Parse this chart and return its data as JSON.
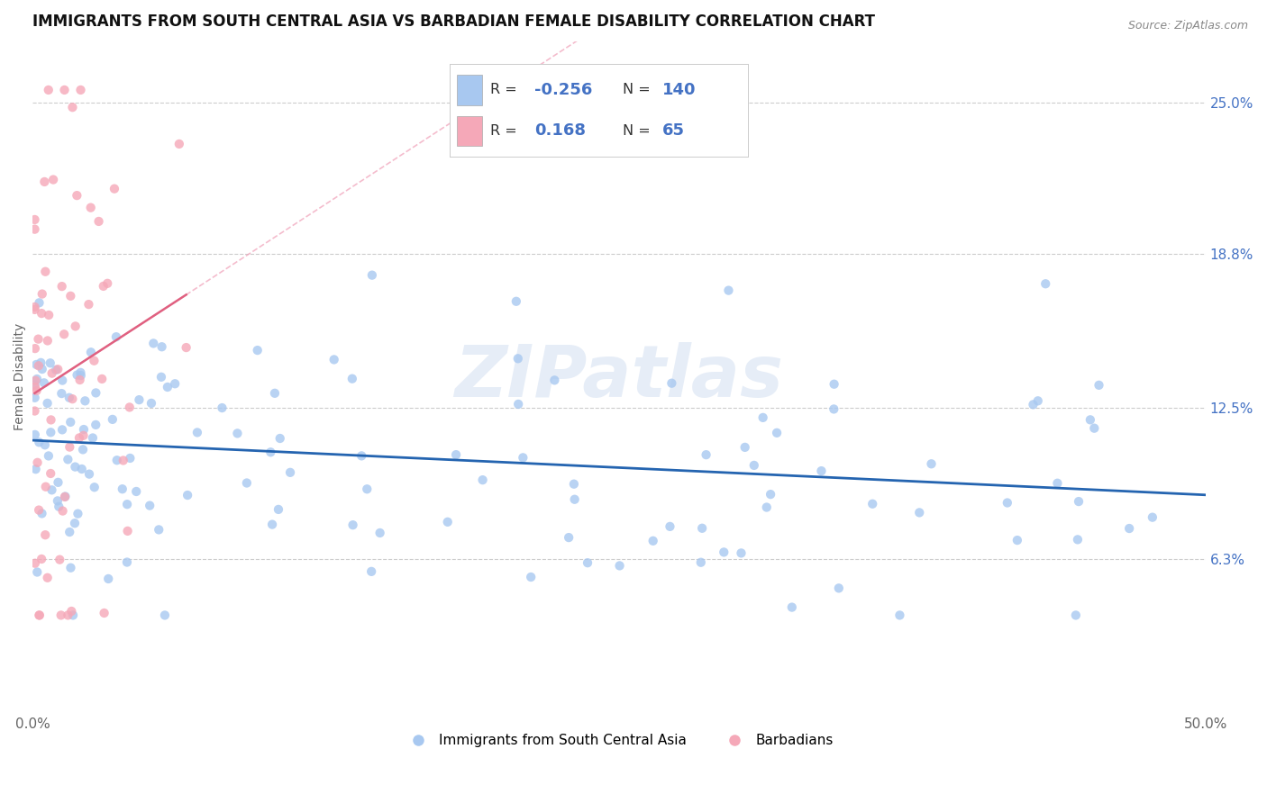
{
  "title": "IMMIGRANTS FROM SOUTH CENTRAL ASIA VS BARBADIAN FEMALE DISABILITY CORRELATION CHART",
  "source": "Source: ZipAtlas.com",
  "ylabel": "Female Disability",
  "xlim": [
    0.0,
    0.5
  ],
  "ylim": [
    0.0,
    0.275
  ],
  "yticks": [
    0.063,
    0.125,
    0.188,
    0.25
  ],
  "ytick_labels": [
    "6.3%",
    "12.5%",
    "18.8%",
    "25.0%"
  ],
  "xticks": [
    0.0,
    0.5
  ],
  "xtick_labels": [
    "0.0%",
    "50.0%"
  ],
  "blue_R": -0.256,
  "blue_N": 140,
  "pink_R": 0.168,
  "pink_N": 65,
  "blue_color": "#A8C8F0",
  "pink_color": "#F5A8B8",
  "blue_line_color": "#2464B0",
  "pink_line_color": "#E06080",
  "pink_dash_color": "#F0A0B8",
  "blue_legend_label": "Immigrants from South Central Asia",
  "pink_legend_label": "Barbadians",
  "watermark": "ZIPatlas",
  "title_fontsize": 12,
  "axis_label_fontsize": 10,
  "tick_fontsize": 11
}
